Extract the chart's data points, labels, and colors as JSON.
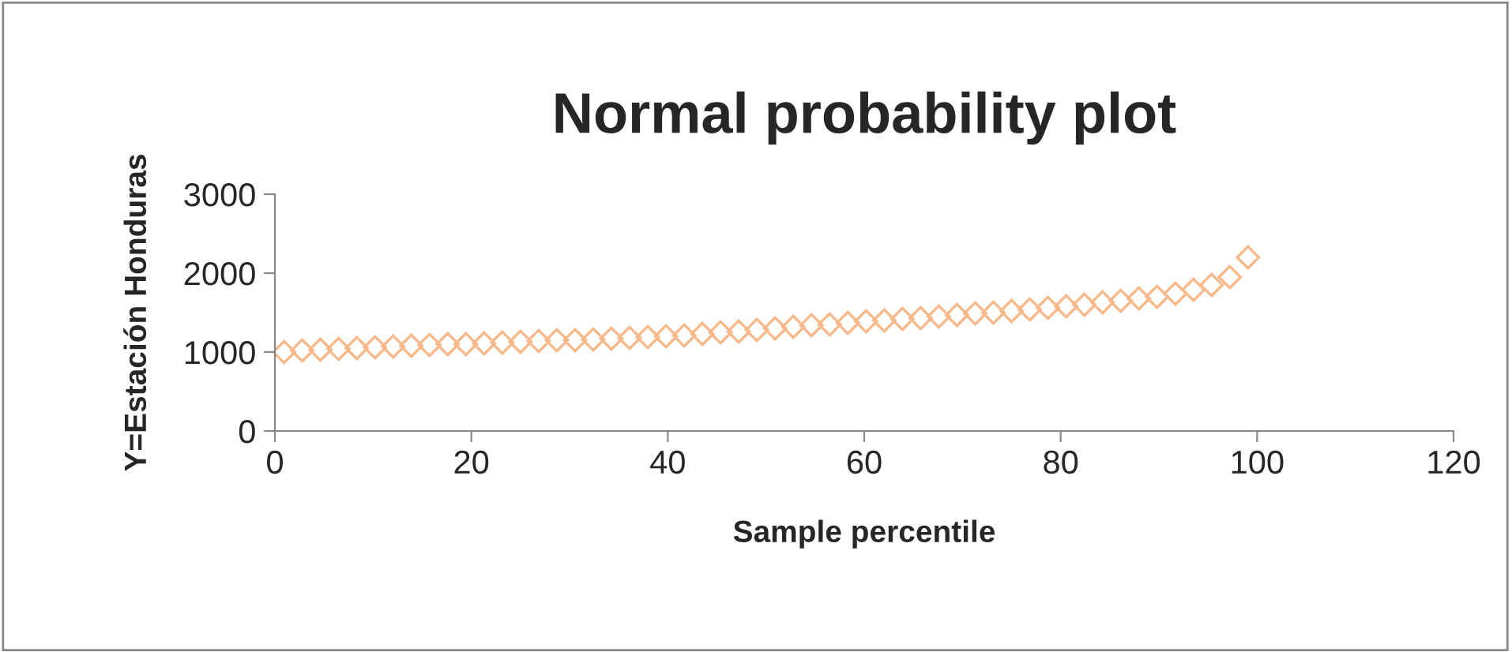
{
  "chart_data": {
    "type": "scatter",
    "title": "Normal probability plot",
    "xlabel": "Sample percentile",
    "ylabel": "Y=Estación Honduras",
    "x": [
      0.93,
      2.78,
      4.63,
      6.48,
      8.33,
      10.19,
      12.04,
      13.89,
      15.74,
      17.59,
      19.44,
      21.3,
      23.15,
      25.0,
      26.85,
      28.7,
      30.56,
      32.41,
      34.26,
      36.11,
      37.96,
      39.81,
      41.67,
      43.52,
      45.37,
      47.22,
      49.07,
      50.93,
      52.78,
      54.63,
      56.48,
      58.33,
      60.19,
      62.04,
      63.89,
      65.74,
      67.59,
      69.44,
      71.3,
      73.15,
      75.0,
      76.85,
      78.7,
      80.56,
      82.41,
      84.26,
      86.11,
      87.96,
      89.81,
      91.67,
      93.52,
      95.37,
      97.22,
      99.07
    ],
    "series": [
      {
        "color": "#f8b98a",
        "values": [
          1000,
          1020,
          1030,
          1040,
          1050,
          1060,
          1070,
          1080,
          1090,
          1100,
          1100,
          1110,
          1120,
          1130,
          1140,
          1150,
          1150,
          1160,
          1170,
          1180,
          1190,
          1200,
          1210,
          1230,
          1250,
          1260,
          1280,
          1300,
          1320,
          1340,
          1350,
          1370,
          1390,
          1400,
          1420,
          1430,
          1450,
          1470,
          1490,
          1500,
          1520,
          1540,
          1560,
          1580,
          1600,
          1630,
          1650,
          1680,
          1700,
          1740,
          1790,
          1850,
          1950,
          2200
        ]
      }
    ],
    "xlim": [
      0,
      120
    ],
    "xticks": [
      0,
      20,
      40,
      60,
      80,
      100,
      120
    ],
    "ylim": [
      0,
      3000
    ],
    "yticks": [
      0,
      1000,
      2000,
      3000
    ],
    "marker": "diamond",
    "grid": false,
    "legend": false
  }
}
